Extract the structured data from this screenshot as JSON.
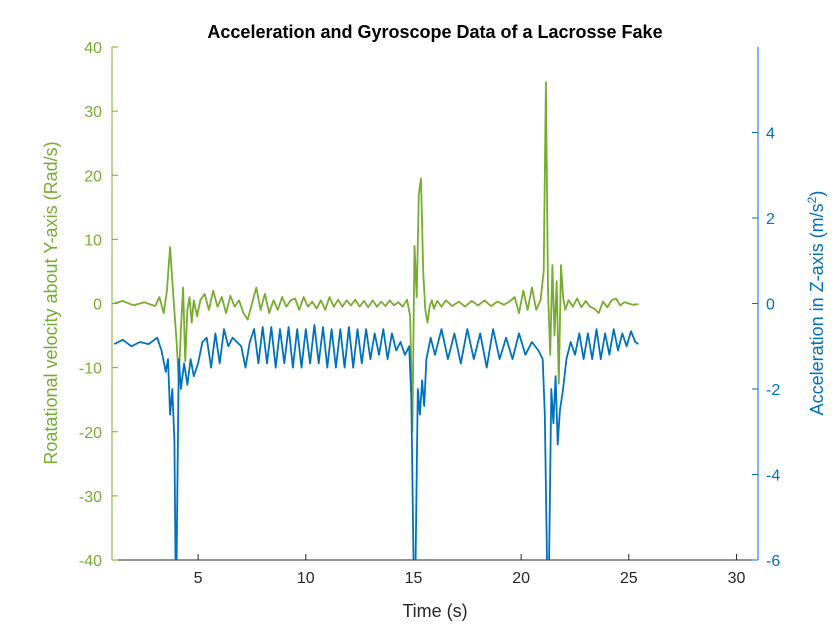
{
  "chart_data": {
    "type": "line",
    "title": "Acceleration and Gyroscope Data of a Lacrosse Fake",
    "xlabel": "Time (s)",
    "xlim": [
      1,
      31
    ],
    "xticks": [
      "5",
      "10",
      "15",
      "20",
      "25",
      "30"
    ],
    "grid": false,
    "legend": "none",
    "colors": {
      "left": "#77ac30",
      "right": "#0072bd",
      "axis": "#262626"
    },
    "left_axis": {
      "label": "Roatational velocity about Y-axis (Rad/s)",
      "ylim": [
        -40,
        40
      ],
      "ticks": [
        "-40",
        "-30",
        "-20",
        "-10",
        "0",
        "10",
        "20",
        "30",
        "40"
      ]
    },
    "right_axis": {
      "label_prefix": "Acceleration in Z-axis (m/s",
      "label_exp": "2",
      "label_suffix": ")",
      "ylim": [
        -6,
        6
      ],
      "ticks": [
        "-6",
        "-4",
        "-2",
        "0",
        "2",
        "4"
      ]
    },
    "series": [
      {
        "axis": "left",
        "color": "#77ac30",
        "x": [
          1.1,
          1.5,
          2.0,
          2.5,
          3.0,
          3.2,
          3.4,
          3.55,
          3.7,
          3.85,
          4.0,
          4.1,
          4.2,
          4.3,
          4.4,
          4.5,
          4.6,
          4.7,
          4.8,
          4.95,
          5.1,
          5.3,
          5.5,
          5.7,
          5.9,
          6.1,
          6.3,
          6.5,
          6.7,
          6.9,
          7.1,
          7.3,
          7.5,
          7.7,
          7.9,
          8.1,
          8.3,
          8.5,
          8.7,
          8.9,
          9.1,
          9.3,
          9.5,
          9.7,
          9.9,
          10.1,
          10.3,
          10.5,
          10.7,
          10.9,
          11.1,
          11.3,
          11.5,
          11.7,
          11.9,
          12.1,
          12.3,
          12.5,
          12.7,
          12.9,
          13.1,
          13.3,
          13.5,
          13.7,
          13.9,
          14.1,
          14.3,
          14.5,
          14.7,
          14.85,
          14.95,
          15.05,
          15.15,
          15.25,
          15.35,
          15.45,
          15.55,
          15.65,
          15.75,
          15.85,
          15.95,
          16.1,
          16.3,
          16.5,
          16.8,
          17.1,
          17.4,
          17.7,
          18.0,
          18.3,
          18.6,
          18.9,
          19.2,
          19.5,
          19.7,
          19.9,
          20.1,
          20.3,
          20.5,
          20.7,
          20.9,
          21.05,
          21.15,
          21.25,
          21.35,
          21.45,
          21.55,
          21.65,
          21.75,
          21.85,
          21.95,
          22.05,
          22.2,
          22.4,
          22.6,
          22.8,
          23.0,
          23.2,
          23.4,
          23.6,
          23.8,
          24.0,
          24.2,
          24.4,
          24.6,
          24.8,
          25.0,
          25.2,
          25.45
        ],
        "y": [
          0,
          0.4,
          -0.3,
          0.2,
          -0.4,
          1.0,
          -1.5,
          2.0,
          8.8,
          1.0,
          -6.0,
          -12.0,
          -4.0,
          2.5,
          -9.0,
          -1.0,
          1.0,
          -3.0,
          0.5,
          -2.0,
          0.5,
          1.5,
          -1.0,
          2.0,
          -0.5,
          1.0,
          -1.5,
          1.2,
          -0.5,
          0.5,
          -1.5,
          -2.5,
          0,
          2.5,
          -1.0,
          1.5,
          -1.5,
          0.5,
          -1.0,
          1.0,
          -0.5,
          0.5,
          0.8,
          -1.0,
          1.0,
          -0.5,
          0.3,
          -0.8,
          0.5,
          -1.0,
          1.0,
          -0.5,
          0.6,
          -0.5,
          0.5,
          -0.3,
          0.6,
          -0.5,
          0.4,
          -0.6,
          0.5,
          -0.5,
          0.3,
          -0.4,
          0.5,
          -0.3,
          0.2,
          -0.5,
          0.6,
          -2.0,
          -20.0,
          9.0,
          1.0,
          17.0,
          19.5,
          5.0,
          -1.0,
          -3.0,
          -0.5,
          0.5,
          -0.8,
          0.4,
          -0.5,
          0.5,
          -0.4,
          0.3,
          -0.5,
          0.4,
          -0.3,
          0.5,
          -0.4,
          0.3,
          -0.2,
          0.4,
          1.0,
          -1.5,
          2.0,
          -1.0,
          2.5,
          -1.0,
          0.5,
          5.0,
          34.5,
          2.0,
          -8.0,
          6.0,
          -5.0,
          3.5,
          -12.5,
          6.0,
          1.0,
          -1.0,
          0.5,
          -0.5,
          0.8,
          -0.6,
          0.4,
          -0.5,
          -0.8,
          -1.5,
          0.3,
          -0.6,
          0.5,
          0.8,
          -0.3,
          0.2,
          0,
          -0.2,
          -0.1
        ]
      },
      {
        "axis": "right",
        "color": "#0072bd",
        "x": [
          1.1,
          1.5,
          1.9,
          2.3,
          2.7,
          3.1,
          3.3,
          3.5,
          3.6,
          3.7,
          3.8,
          3.9,
          3.95,
          4.0,
          4.1,
          4.2,
          4.35,
          4.5,
          4.65,
          4.8,
          5.0,
          5.2,
          5.4,
          5.6,
          5.8,
          6.0,
          6.2,
          6.4,
          6.6,
          6.8,
          7.0,
          7.2,
          7.4,
          7.6,
          7.8,
          8.0,
          8.2,
          8.4,
          8.6,
          8.8,
          9.0,
          9.2,
          9.4,
          9.6,
          9.8,
          10.0,
          10.2,
          10.4,
          10.6,
          10.8,
          11.0,
          11.2,
          11.4,
          11.6,
          11.8,
          12.0,
          12.2,
          12.4,
          12.6,
          12.8,
          13.0,
          13.2,
          13.4,
          13.6,
          13.8,
          14.0,
          14.2,
          14.4,
          14.6,
          14.8,
          14.9,
          15.0,
          15.1,
          15.2,
          15.3,
          15.4,
          15.5,
          15.6,
          15.8,
          16.0,
          16.3,
          16.6,
          16.9,
          17.2,
          17.5,
          17.8,
          18.1,
          18.4,
          18.7,
          19.0,
          19.3,
          19.6,
          19.9,
          20.2,
          20.5,
          20.8,
          21.0,
          21.1,
          21.2,
          21.3,
          21.4,
          21.5,
          21.6,
          21.7,
          21.8,
          21.95,
          22.1,
          22.3,
          22.5,
          22.7,
          22.9,
          23.1,
          23.3,
          23.5,
          23.7,
          23.9,
          24.1,
          24.3,
          24.5,
          24.7,
          24.9,
          25.1,
          25.3,
          25.45
        ],
        "y": [
          -0.95,
          -0.85,
          -1.0,
          -0.9,
          -0.95,
          -0.8,
          -1.1,
          -1.6,
          -1.3,
          -2.6,
          -2.0,
          -3.2,
          -6.0,
          -6.0,
          -1.3,
          -2.0,
          -1.4,
          -1.9,
          -1.3,
          -1.7,
          -1.4,
          -0.9,
          -0.8,
          -1.5,
          -0.7,
          -1.4,
          -0.6,
          -1.0,
          -0.8,
          -0.9,
          -1.0,
          -1.5,
          -0.9,
          -0.6,
          -1.4,
          -0.55,
          -1.4,
          -0.55,
          -1.5,
          -0.6,
          -1.4,
          -0.55,
          -1.5,
          -0.6,
          -1.5,
          -0.6,
          -1.4,
          -0.5,
          -1.4,
          -0.55,
          -1.5,
          -0.6,
          -1.5,
          -0.6,
          -1.5,
          -0.55,
          -1.5,
          -0.6,
          -1.4,
          -0.6,
          -1.3,
          -0.7,
          -1.2,
          -0.6,
          -1.3,
          -0.7,
          -1.1,
          -0.9,
          -1.2,
          -1.0,
          -2.2,
          -6.0,
          -6.0,
          -2.0,
          -2.6,
          -1.8,
          -2.4,
          -1.3,
          -0.8,
          -1.2,
          -0.6,
          -1.3,
          -0.7,
          -1.4,
          -0.6,
          -1.3,
          -0.7,
          -1.5,
          -0.6,
          -1.3,
          -0.8,
          -1.3,
          -0.7,
          -1.2,
          -0.9,
          -1.1,
          -1.3,
          -2.6,
          -6.0,
          -6.0,
          -2.0,
          -2.8,
          -1.7,
          -3.3,
          -2.5,
          -2.0,
          -1.3,
          -0.9,
          -1.2,
          -0.7,
          -1.3,
          -0.7,
          -1.3,
          -0.6,
          -1.3,
          -0.7,
          -1.2,
          -0.6,
          -1.1,
          -0.7,
          -1.0,
          -0.65,
          -0.9,
          -0.95
        ]
      }
    ]
  }
}
